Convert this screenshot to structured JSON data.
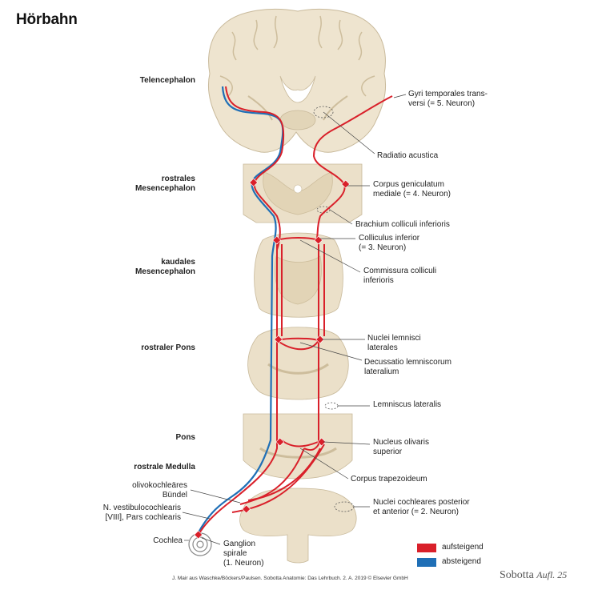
{
  "title": "Hörbahn",
  "levels": {
    "telencephalon": "Telencephalon",
    "rostral_mesencephalon": "rostrales\nMesencephalon",
    "caudal_mesencephalon": "kaudales\nMesencephalon",
    "rostral_pons": "rostraler Pons",
    "pons": "Pons",
    "rostral_medulla": "rostrale Medulla"
  },
  "left_labels": {
    "olivocochlear": "olivokochleäres\nBündel",
    "vestibulocochlear": "N. vestibulocochlearis\n[VIII], Pars cochlearis",
    "cochlea": "Cochlea"
  },
  "right_labels": {
    "gyri": "Gyri temporales trans-\nversi (= 5. Neuron)",
    "radiatio": "Radiatio acustica",
    "geniculatum": "Corpus geniculatum\nmediale (= 4. Neuron)",
    "brachium": "Brachium colliculi inferioris",
    "colliculus": "Colliculus inferior\n(= 3. Neuron)",
    "commissura": "Commissura colliculi\ninferioris",
    "lemnisci": "Nuclei lemnisci\nlaterales",
    "decussatio": "Decussatio lemniscorum\nlateralium",
    "lemniscus": "Lemniscus lateralis",
    "olivaris": "Nucleus olivaris\nsuperior",
    "trapezoideum": "Corpus trapezoideum",
    "cochleares": "Nuclei cochleares posterior\net anterior (= 2. Neuron)",
    "ganglion": "Ganglion\nspirale\n(1. Neuron)"
  },
  "legend": {
    "ascending": "aufsteigend",
    "descending": "absteigend",
    "ascending_color": "#d9202a",
    "descending_color": "#1f6fb6"
  },
  "credit": "J. Mair aus Waschke/Böckers/Paulsen. Sobotta Anatomie: Das Lehrbuch. 2. A. 2019 © Elsevier GmbH",
  "brand": "Sobotta",
  "brand_edition": "Aufl. 25"
}
